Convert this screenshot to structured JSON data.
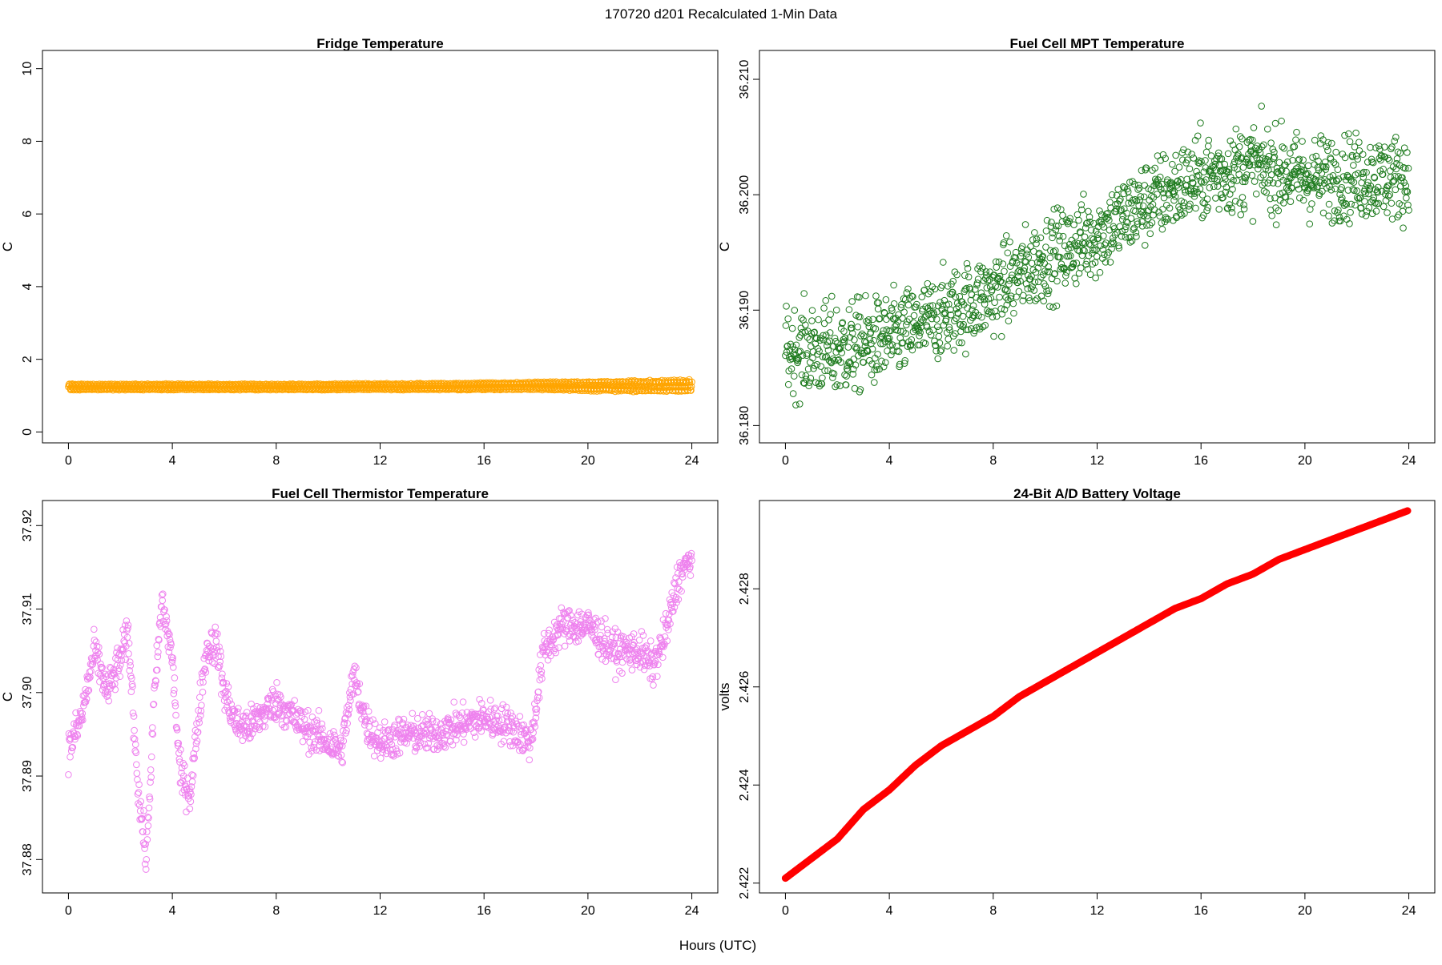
{
  "figure": {
    "title": "170720   d201   Recalculated 1-Min Data",
    "xlabel": "Hours (UTC)"
  },
  "chart_data": [
    {
      "type": "scatter",
      "title": "Fridge Temperature",
      "ylabel": "C",
      "xlabel": "",
      "xlim": [
        -1,
        25
      ],
      "ylim": [
        -0.3,
        10.5
      ],
      "xticks": [
        "0",
        "4",
        "8",
        "12",
        "16",
        "20",
        "24"
      ],
      "yticks": [
        "0",
        "2",
        "4",
        "6",
        "8",
        "10"
      ],
      "grid": false,
      "color": "#FFA500",
      "point_count": 1440,
      "series": [
        {
          "x": [
            0,
            2,
            4,
            6,
            8,
            10,
            12,
            14,
            16,
            18,
            20,
            22,
            24
          ],
          "y_min": [
            1.15,
            1.15,
            1.15,
            1.15,
            1.15,
            1.15,
            1.15,
            1.15,
            1.15,
            1.15,
            1.12,
            1.1,
            1.1
          ],
          "y_max": [
            1.33,
            1.33,
            1.33,
            1.33,
            1.33,
            1.33,
            1.34,
            1.35,
            1.36,
            1.38,
            1.4,
            1.42,
            1.45
          ]
        }
      ]
    },
    {
      "type": "scatter",
      "title": "Fuel Cell MPT Temperature",
      "ylabel": "C",
      "xlabel": "",
      "xlim": [
        -1,
        25
      ],
      "ylim": [
        36.1785,
        36.2125
      ],
      "xticks": [
        "0",
        "4",
        "8",
        "12",
        "16",
        "20",
        "24"
      ],
      "yticks": [
        "36.180",
        "36.190",
        "36.200",
        "36.210"
      ],
      "grid": false,
      "color": "#1E7B1E",
      "point_count": 1440,
      "series": [
        {
          "x": [
            0,
            2,
            4,
            6,
            8,
            10,
            12,
            14,
            16,
            18,
            20,
            22,
            24
          ],
          "y_mean": [
            36.1865,
            36.1865,
            36.1875,
            36.1895,
            36.1915,
            36.1945,
            36.1965,
            36.1995,
            36.2015,
            36.2025,
            36.2015,
            36.2015,
            36.2015
          ],
          "y_spread": [
            0.0035,
            0.004,
            0.0035,
            0.0035,
            0.0035,
            0.0035,
            0.0035,
            0.0035,
            0.0035,
            0.0035,
            0.0035,
            0.0035,
            0.0035
          ]
        }
      ]
    },
    {
      "type": "scatter",
      "title": "Fuel Cell Thermistor Temperature",
      "ylabel": "C",
      "xlabel": "",
      "xlim": [
        -1,
        25
      ],
      "ylim": [
        37.876,
        37.923
      ],
      "xticks": [
        "0",
        "4",
        "8",
        "12",
        "16",
        "20",
        "24"
      ],
      "yticks": [
        "37.88",
        "37.89",
        "37.90",
        "37.91",
        "37.92"
      ],
      "grid": false,
      "color": "#EE82EE",
      "point_count": 1440,
      "series": [
        {
          "x": [
            0,
            0.5,
            1.0,
            1.5,
            2.0,
            2.3,
            2.7,
            3.0,
            3.3,
            3.6,
            4.0,
            4.3,
            4.7,
            5.0,
            5.3,
            5.7,
            6.0,
            6.5,
            7.0,
            8.0,
            9.0,
            10.0,
            10.5,
            11.0,
            11.5,
            12.0,
            13.0,
            14.0,
            15.0,
            16.0,
            17.0,
            17.8,
            18.3,
            19.0,
            20.0,
            21.0,
            22.0,
            22.5,
            23.0,
            23.5,
            24.0
          ],
          "y": [
            37.893,
            37.897,
            37.905,
            37.9,
            37.904,
            37.907,
            37.888,
            37.88,
            37.899,
            37.911,
            37.904,
            37.89,
            37.888,
            37.897,
            37.905,
            37.906,
            37.9,
            37.896,
            37.896,
            37.899,
            37.896,
            37.894,
            37.893,
            37.902,
            37.896,
            37.894,
            37.895,
            37.895,
            37.896,
            37.897,
            37.896,
            37.894,
            37.905,
            37.908,
            37.908,
            37.905,
            37.905,
            37.903,
            37.907,
            37.914,
            37.916
          ]
        }
      ]
    },
    {
      "type": "line",
      "title": "24-Bit A/D Battery Voltage",
      "ylabel": "volts",
      "xlabel": "",
      "xlim": [
        -1,
        25
      ],
      "ylim": [
        2.4218,
        2.4298
      ],
      "xticks": [
        "0",
        "4",
        "8",
        "12",
        "16",
        "20",
        "24"
      ],
      "yticks": [
        "2.422",
        "2.424",
        "2.426",
        "2.428"
      ],
      "grid": false,
      "color": "#FF0000",
      "point_count": 1440,
      "series": [
        {
          "x": [
            0,
            1,
            2,
            3,
            4,
            5,
            6,
            7,
            8,
            9,
            10,
            11,
            12,
            13,
            14,
            15,
            16,
            17,
            18,
            19,
            20,
            21,
            22,
            23,
            24
          ],
          "y": [
            2.4221,
            2.4225,
            2.4229,
            2.4235,
            2.4239,
            2.4244,
            2.4248,
            2.4251,
            2.4254,
            2.4258,
            2.4261,
            2.4264,
            2.4267,
            2.427,
            2.4273,
            2.4276,
            2.4278,
            2.4281,
            2.4283,
            2.4286,
            2.4288,
            2.429,
            2.4292,
            2.4294,
            2.4296
          ]
        }
      ]
    }
  ]
}
